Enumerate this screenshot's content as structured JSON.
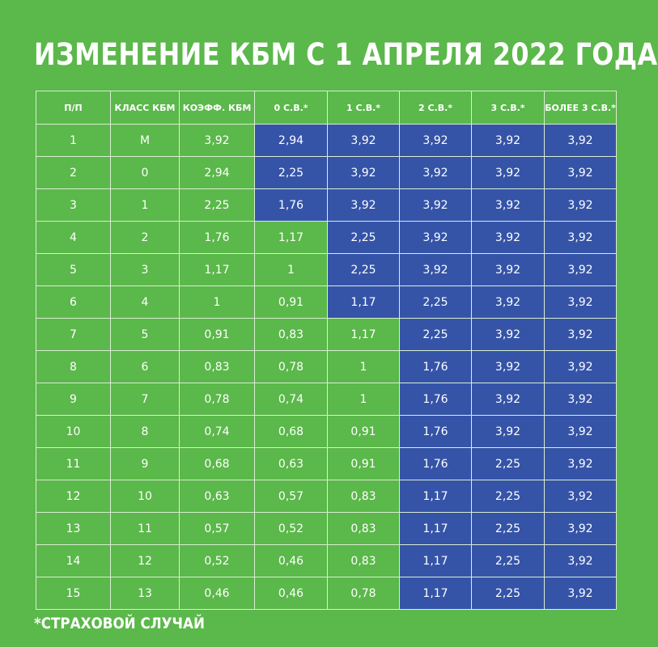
{
  "title": "ИЗМЕНЕНИЕ КБМ С 1 АПРЕЛЯ 2022 ГОДА",
  "colors": {
    "background": "#5bb84a",
    "highlight": "#3554a8",
    "text": "#ffffff"
  },
  "table": {
    "headers": [
      "П/П",
      "КЛАСС КБМ",
      "КОЭФФ. КБМ",
      "0 С.В.*",
      "1 С.В.*",
      "2 С.В.*",
      "3 С.В.*",
      "БОЛЕЕ 3 С.В.*"
    ],
    "rows": [
      {
        "cells": [
          "1",
          "М",
          "3,92",
          "2,94",
          "3,92",
          "3,92",
          "3,92",
          "3,92"
        ],
        "blue": [
          false,
          false,
          false,
          true,
          true,
          true,
          true,
          true
        ]
      },
      {
        "cells": [
          "2",
          "0",
          "2,94",
          "2,25",
          "3,92",
          "3,92",
          "3,92",
          "3,92"
        ],
        "blue": [
          false,
          false,
          false,
          true,
          true,
          true,
          true,
          true
        ]
      },
      {
        "cells": [
          "3",
          "1",
          "2,25",
          "1,76",
          "3,92",
          "3,92",
          "3,92",
          "3,92"
        ],
        "blue": [
          false,
          false,
          false,
          true,
          true,
          true,
          true,
          true
        ]
      },
      {
        "cells": [
          "4",
          "2",
          "1,76",
          "1,17",
          "2,25",
          "3,92",
          "3,92",
          "3,92"
        ],
        "blue": [
          false,
          false,
          false,
          false,
          true,
          true,
          true,
          true
        ]
      },
      {
        "cells": [
          "5",
          "3",
          "1,17",
          "1",
          "2,25",
          "3,92",
          "3,92",
          "3,92"
        ],
        "blue": [
          false,
          false,
          false,
          false,
          true,
          true,
          true,
          true
        ]
      },
      {
        "cells": [
          "6",
          "4",
          "1",
          "0,91",
          "1,17",
          "2,25",
          "3,92",
          "3,92"
        ],
        "blue": [
          false,
          false,
          false,
          false,
          true,
          true,
          true,
          true
        ]
      },
      {
        "cells": [
          "7",
          "5",
          "0,91",
          "0,83",
          "1,17",
          "2,25",
          "3,92",
          "3,92"
        ],
        "blue": [
          false,
          false,
          false,
          false,
          false,
          true,
          true,
          true
        ]
      },
      {
        "cells": [
          "8",
          "6",
          "0,83",
          "0,78",
          "1",
          "1,76",
          "3,92",
          "3,92"
        ],
        "blue": [
          false,
          false,
          false,
          false,
          false,
          true,
          true,
          true
        ]
      },
      {
        "cells": [
          "9",
          "7",
          "0,78",
          "0,74",
          "1",
          "1,76",
          "3,92",
          "3,92"
        ],
        "blue": [
          false,
          false,
          false,
          false,
          false,
          true,
          true,
          true
        ]
      },
      {
        "cells": [
          "10",
          "8",
          "0,74",
          "0,68",
          "0,91",
          "1,76",
          "3,92",
          "3,92"
        ],
        "blue": [
          false,
          false,
          false,
          false,
          false,
          true,
          true,
          true
        ]
      },
      {
        "cells": [
          "11",
          "9",
          "0,68",
          "0,63",
          "0,91",
          "1,76",
          "2,25",
          "3,92"
        ],
        "blue": [
          false,
          false,
          false,
          false,
          false,
          true,
          true,
          true
        ]
      },
      {
        "cells": [
          "12",
          "10",
          "0,63",
          "0,57",
          "0,83",
          "1,17",
          "2,25",
          "3,92"
        ],
        "blue": [
          false,
          false,
          false,
          false,
          false,
          true,
          true,
          true
        ]
      },
      {
        "cells": [
          "13",
          "11",
          "0,57",
          "0,52",
          "0,83",
          "1,17",
          "2,25",
          "3,92"
        ],
        "blue": [
          false,
          false,
          false,
          false,
          false,
          true,
          true,
          true
        ]
      },
      {
        "cells": [
          "14",
          "12",
          "0,52",
          "0,46",
          "0,83",
          "1,17",
          "2,25",
          "3,92"
        ],
        "blue": [
          false,
          false,
          false,
          false,
          false,
          true,
          true,
          true
        ]
      },
      {
        "cells": [
          "15",
          "13",
          "0,46",
          "0,46",
          "0,78",
          "1,17",
          "2,25",
          "3,92"
        ],
        "blue": [
          false,
          false,
          false,
          false,
          false,
          true,
          true,
          true
        ]
      }
    ]
  },
  "footnote": "*СТРАХОВОЙ СЛУЧАЙ"
}
